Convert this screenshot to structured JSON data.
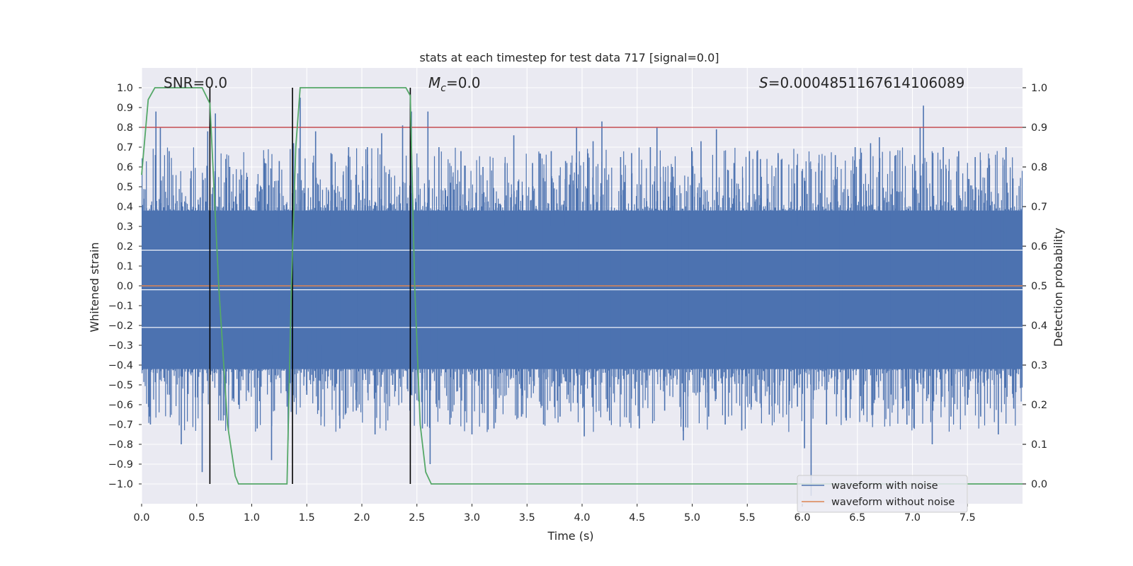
{
  "chart_data": {
    "type": "line",
    "title": "stats at each timestep for test data 717 [signal=0.0]",
    "xlabel": "Time (s)",
    "ylabel": "Whitened strain",
    "y2label": "Detection probability",
    "xlim": [
      0.0,
      8.0
    ],
    "ylim": [
      -1.1,
      1.1
    ],
    "y2lim": [
      -0.05,
      1.05
    ],
    "x_ticks": [
      0.0,
      0.5,
      1.0,
      1.5,
      2.0,
      2.5,
      3.0,
      3.5,
      4.0,
      4.5,
      5.0,
      5.5,
      6.0,
      6.5,
      7.0,
      7.5
    ],
    "x_tick_labels": [
      "0.0",
      "0.5",
      "1.0",
      "1.5",
      "2.0",
      "2.5",
      "3.0",
      "3.5",
      "4.0",
      "4.5",
      "5.0",
      "5.5",
      "6.0",
      "6.5",
      "7.0",
      "7.5"
    ],
    "y_ticks": [
      1.0,
      0.9,
      0.8,
      0.7,
      0.6,
      0.5,
      0.4,
      0.3,
      0.2,
      0.1,
      0.0,
      -0.1,
      -0.2,
      -0.3,
      -0.4,
      -0.5,
      -0.6,
      -0.7,
      -0.8,
      -0.9,
      -1.0
    ],
    "y_tick_labels": [
      "1.0",
      "0.9",
      "0.8",
      "0.7",
      "0.6",
      "0.5",
      "0.4",
      "0.3",
      "0.2",
      "0.1",
      "0.0",
      "−0.1",
      "−0.2",
      "−0.3",
      "−0.4",
      "−0.5",
      "−0.6",
      "−0.7",
      "−0.8",
      "−0.9",
      "−1.0"
    ],
    "y2_ticks": [
      1.0,
      0.9,
      0.8,
      0.7,
      0.6,
      0.5,
      0.4,
      0.3,
      0.2,
      0.1,
      0.0
    ],
    "y2_tick_labels": [
      "1.0",
      "0.9",
      "0.8",
      "0.7",
      "0.6",
      "0.5",
      "0.4",
      "0.3",
      "0.2",
      "0.1",
      "0.0"
    ],
    "grid": true,
    "legend_position": "lower-right",
    "annotations": {
      "snr": "SNR=0.0",
      "mc_symbol": "M",
      "mc_sub": "c",
      "mc_value": "=0.0",
      "s_symbol": "S",
      "s_value": "=0.0004851167614106089"
    },
    "series": [
      {
        "name": "waveform with noise",
        "color": "#4c72b0",
        "axis": "left",
        "description": "noisy whitened strain, ~8 s, values mostly within ±0.6 with spikes to ±1.0",
        "band_low": -0.42,
        "band_high": 0.38,
        "spikes": [
          [
            0.02,
            0.44
          ],
          [
            0.08,
            -0.7
          ],
          [
            0.13,
            0.88
          ],
          [
            0.17,
            0.8
          ],
          [
            0.25,
            0.68
          ],
          [
            0.36,
            -0.8
          ],
          [
            0.45,
            0.58
          ],
          [
            0.55,
            -0.94
          ],
          [
            0.6,
            0.78
          ],
          [
            0.67,
            0.87
          ],
          [
            0.72,
            -0.68
          ],
          [
            0.8,
            0.6
          ],
          [
            0.88,
            -0.6
          ],
          [
            0.96,
            0.55
          ],
          [
            1.05,
            -0.72
          ],
          [
            1.12,
            0.62
          ],
          [
            1.18,
            -0.88
          ],
          [
            1.25,
            0.63
          ],
          [
            1.33,
            -0.78
          ],
          [
            1.38,
            0.72
          ],
          [
            1.44,
            0.95
          ],
          [
            1.5,
            -0.55
          ],
          [
            1.58,
            0.78
          ],
          [
            1.63,
            -0.66
          ],
          [
            1.72,
            0.67
          ],
          [
            1.8,
            -0.72
          ],
          [
            1.88,
            0.7
          ],
          [
            1.95,
            -0.63
          ],
          [
            2.05,
            0.7
          ],
          [
            2.12,
            -0.75
          ],
          [
            2.18,
            0.77
          ],
          [
            2.28,
            -0.5
          ],
          [
            2.37,
            0.81
          ],
          [
            2.45,
            0.88
          ],
          [
            2.55,
            -0.72
          ],
          [
            2.6,
            0.88
          ],
          [
            2.62,
            -0.9
          ],
          [
            2.7,
            0.7
          ],
          [
            2.8,
            -0.7
          ],
          [
            2.9,
            0.68
          ],
          [
            3.0,
            -0.75
          ],
          [
            3.1,
            0.6
          ],
          [
            3.2,
            -0.72
          ],
          [
            3.3,
            0.62
          ],
          [
            3.38,
            0.76
          ],
          [
            3.45,
            -0.66
          ],
          [
            3.55,
            0.62
          ],
          [
            3.65,
            -0.7
          ],
          [
            3.72,
            0.68
          ],
          [
            3.8,
            -0.66
          ],
          [
            3.85,
            0.63
          ],
          [
            3.95,
            0.8
          ],
          [
            4.02,
            -0.76
          ],
          [
            4.1,
            0.73
          ],
          [
            4.18,
            0.83
          ],
          [
            4.25,
            -0.68
          ],
          [
            4.35,
            0.65
          ],
          [
            4.45,
            0.67
          ],
          [
            4.52,
            -0.72
          ],
          [
            4.62,
            0.7
          ],
          [
            4.68,
            0.8
          ],
          [
            4.75,
            -0.63
          ],
          [
            4.82,
            0.6
          ],
          [
            4.92,
            -0.78
          ],
          [
            5.0,
            0.68
          ],
          [
            5.08,
            0.73
          ],
          [
            5.15,
            -0.66
          ],
          [
            5.22,
            0.79
          ],
          [
            5.3,
            -0.7
          ],
          [
            5.38,
            0.62
          ],
          [
            5.45,
            -0.73
          ],
          [
            5.52,
            0.68
          ],
          [
            5.62,
            0.64
          ],
          [
            5.7,
            -0.65
          ],
          [
            5.78,
            0.67
          ],
          [
            5.88,
            -0.6
          ],
          [
            5.95,
            0.61
          ],
          [
            6.02,
            -0.82
          ],
          [
            6.08,
            -1.06
          ],
          [
            6.15,
            0.62
          ],
          [
            6.22,
            -0.7
          ],
          [
            6.3,
            0.66
          ],
          [
            6.4,
            -0.68
          ],
          [
            6.48,
            0.7
          ],
          [
            6.55,
            -0.62
          ],
          [
            6.62,
            0.72
          ],
          [
            6.7,
            0.75
          ],
          [
            6.78,
            -0.62
          ],
          [
            6.85,
            0.66
          ],
          [
            6.95,
            -0.7
          ],
          [
            7.02,
            0.66
          ],
          [
            7.07,
            0.8
          ],
          [
            7.1,
            0.91
          ],
          [
            7.18,
            -0.8
          ],
          [
            7.28,
            0.7
          ],
          [
            7.35,
            -0.66
          ],
          [
            7.42,
            0.68
          ],
          [
            7.5,
            -0.6
          ],
          [
            7.57,
            0.65
          ],
          [
            7.62,
            -0.66
          ],
          [
            7.7,
            0.61
          ],
          [
            7.78,
            -0.75
          ],
          [
            7.85,
            0.7
          ],
          [
            7.92,
            -0.62
          ]
        ]
      },
      {
        "name": "waveform without noise",
        "color": "#dd8452",
        "axis": "left",
        "x": [
          0.0,
          8.0
        ],
        "y": [
          0.0,
          0.0
        ]
      },
      {
        "name": "detection probability",
        "color": "#55a868",
        "axis": "right",
        "x": [
          0.0,
          0.06,
          0.12,
          0.25,
          0.4,
          0.55,
          0.62,
          0.7,
          0.78,
          0.85,
          0.88,
          1.0,
          1.2,
          1.32,
          1.36,
          1.4,
          1.44,
          1.55,
          2.0,
          2.4,
          2.44,
          2.48,
          2.53,
          2.58,
          2.63,
          2.7,
          3.5,
          8.0
        ],
        "y": [
          0.78,
          0.97,
          1.0,
          1.0,
          1.0,
          1.0,
          0.96,
          0.5,
          0.15,
          0.02,
          0.0,
          0.0,
          0.0,
          0.0,
          0.5,
          0.85,
          1.0,
          1.0,
          1.0,
          1.0,
          0.98,
          0.5,
          0.15,
          0.03,
          0.0,
          0.0,
          0.0,
          0.0
        ]
      }
    ],
    "threshold_line": {
      "color": "#c44e52",
      "axis": "right",
      "value": 0.9
    },
    "vertical_markers": {
      "color": "#000000",
      "axis": "right",
      "x": [
        0.62,
        1.37,
        2.44
      ],
      "y_range": [
        0.0,
        1.0
      ]
    },
    "legend": [
      {
        "label": "waveform with noise",
        "color": "#4c72b0"
      },
      {
        "label": "waveform without noise",
        "color": "#dd8452"
      }
    ]
  }
}
